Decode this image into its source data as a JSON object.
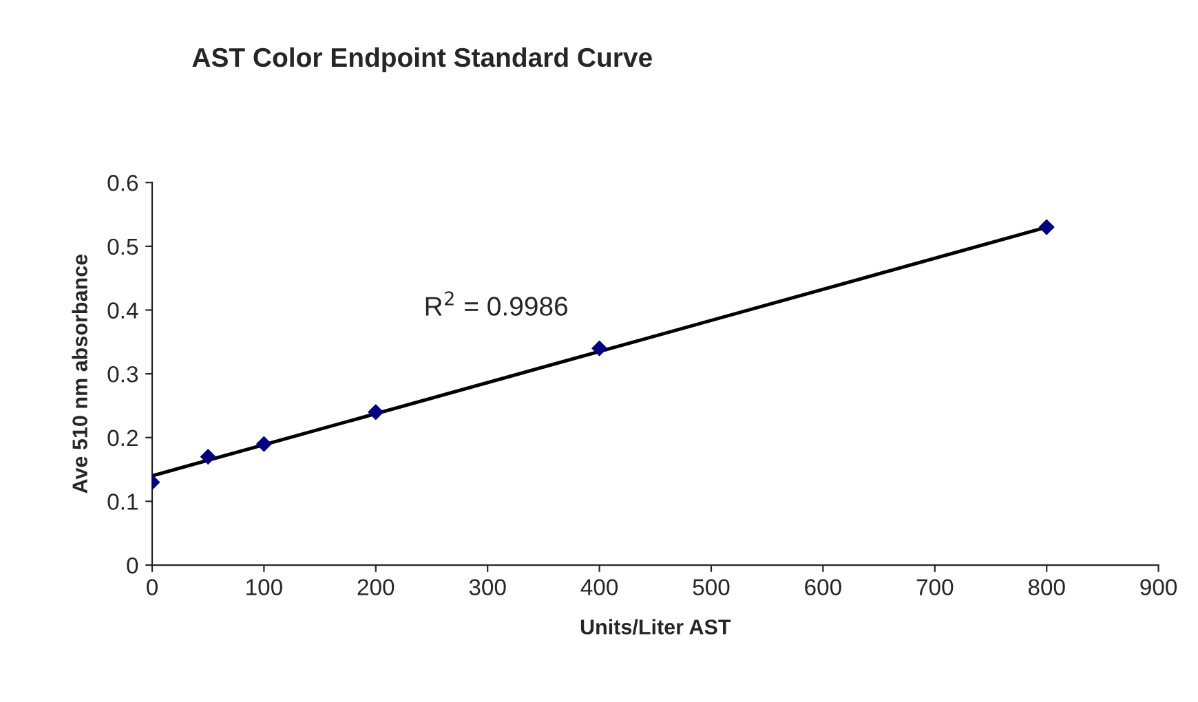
{
  "chart_data": {
    "type": "scatter",
    "title": "AST Color Endpoint Standard Curve",
    "xlabel": "Units/Liter AST",
    "ylabel": "Ave 510 nm absorbance",
    "x": [
      0,
      50,
      100,
      200,
      400,
      800
    ],
    "series": [
      {
        "color": "#000080",
        "marker": "diamond",
        "values": [
          0.13,
          0.17,
          0.19,
          0.24,
          0.34,
          0.53
        ]
      },
      {
        "type": "line",
        "color": "#000000",
        "marker": "none",
        "line_style": "solid",
        "x": [
          0,
          800
        ],
        "values": [
          0.14,
          0.53
        ]
      }
    ],
    "annotations": [
      "R$^{2}$ = 0.9986"
    ],
    "xlim": [
      0,
      900
    ],
    "xticks": [
      0,
      100,
      200,
      300,
      400,
      500,
      600,
      700,
      800,
      900
    ],
    "ylim": [
      0,
      0.6
    ],
    "yticks": [
      0,
      0.1,
      0.2,
      0.3,
      0.4,
      0.5,
      0.6
    ],
    "grid": false,
    "legend": false
  }
}
